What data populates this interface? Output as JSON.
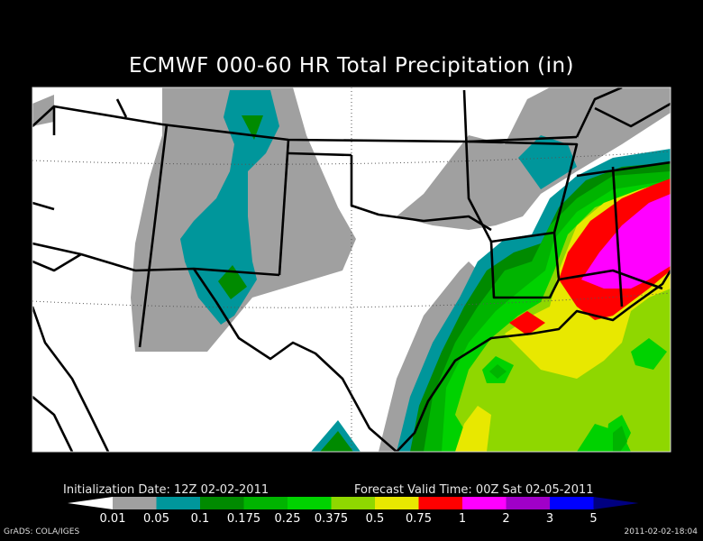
{
  "title": "ECMWF 000-60 HR Total Precipitation (in)",
  "initialization": "Initialization Date: 12Z 02-02-2011",
  "forecast_valid": "Forecast Valid Time: 00Z Sat 02-05-2011",
  "footer_left": "GrADS: COLA/IGES",
  "footer_right": "2011-02-02-18:04",
  "legend": {
    "labels": [
      "0.01",
      "0.05",
      "0.1",
      "0.175",
      "0.25",
      "0.375",
      "0.5",
      "0.75",
      "1",
      "2",
      "3",
      "5"
    ],
    "colors": [
      "#ffffff",
      "#a0a0a0",
      "#00969b",
      "#008a00",
      "#00b400",
      "#00d200",
      "#8fd700",
      "#e8e800",
      "#ff0000",
      "#ff00ff",
      "#a000c8",
      "#0000ff",
      "#000080"
    ]
  },
  "colors": {
    "background": "#000000",
    "land": "#ffffff",
    "borders": "#000000"
  }
}
